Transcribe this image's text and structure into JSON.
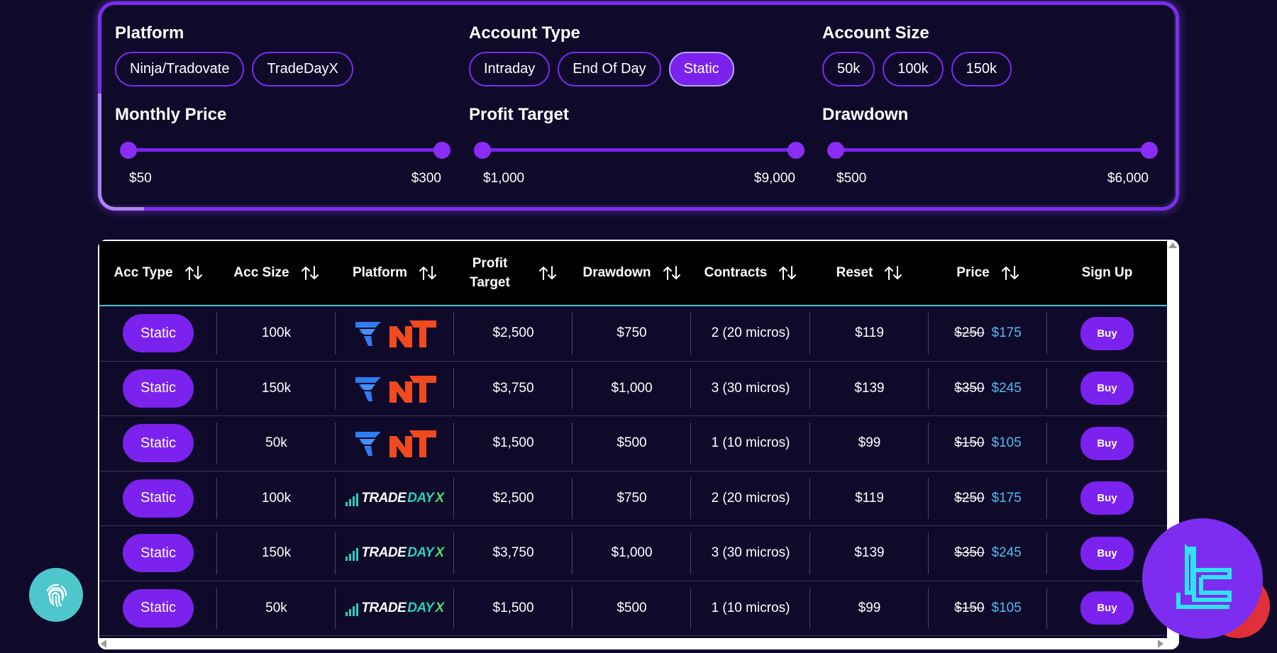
{
  "filters": {
    "platform": {
      "title": "Platform",
      "options": [
        "Ninja/Tradovate",
        "TradeDayX"
      ]
    },
    "account_type": {
      "title": "Account Type",
      "options": [
        "Intraday",
        "End Of Day",
        "Static"
      ],
      "selected": "Static"
    },
    "account_size": {
      "title": "Account Size",
      "options": [
        "50k",
        "100k",
        "150k"
      ]
    },
    "monthly_price": {
      "title": "Monthly Price",
      "min": "$50",
      "max": "$300"
    },
    "profit_target": {
      "title": "Profit Target",
      "min": "$1,000",
      "max": "$9,000"
    },
    "drawdown": {
      "title": "Drawdown",
      "min": "$500",
      "max": "$6,000"
    }
  },
  "table": {
    "headers": {
      "acc_type": "Acc Type",
      "acc_size": "Acc Size",
      "platform": "Platform",
      "profit_target_line1": "Profit",
      "profit_target_line2": "Target",
      "drawdown": "Drawdown",
      "contracts": "Contracts",
      "reset": "Reset",
      "price": "Price",
      "sign_up": "Sign Up"
    },
    "rows": [
      {
        "type": "Static",
        "size": "100k",
        "platform": "ninja-tradovate",
        "profit_target": "$2,500",
        "drawdown": "$750",
        "contracts": "2 (20 micros)",
        "reset": "$119",
        "price_old": "$250",
        "price_new": "$175",
        "buy": "Buy"
      },
      {
        "type": "Static",
        "size": "150k",
        "platform": "ninja-tradovate",
        "profit_target": "$3,750",
        "drawdown": "$1,000",
        "contracts": "3 (30 micros)",
        "reset": "$139",
        "price_old": "$350",
        "price_new": "$245",
        "buy": "Buy"
      },
      {
        "type": "Static",
        "size": "50k",
        "platform": "ninja-tradovate",
        "profit_target": "$1,500",
        "drawdown": "$500",
        "contracts": "1 (10 micros)",
        "reset": "$99",
        "price_old": "$150",
        "price_new": "$105",
        "buy": "Buy"
      },
      {
        "type": "Static",
        "size": "100k",
        "platform": "tradedayx",
        "profit_target": "$2,500",
        "drawdown": "$750",
        "contracts": "2 (20 micros)",
        "reset": "$119",
        "price_old": "$250",
        "price_new": "$175",
        "buy": "Buy"
      },
      {
        "type": "Static",
        "size": "150k",
        "platform": "tradedayx",
        "profit_target": "$3,750",
        "drawdown": "$1,000",
        "contracts": "3 (30 micros)",
        "reset": "$139",
        "price_old": "$350",
        "price_new": "$245",
        "buy": "Buy"
      },
      {
        "type": "Static",
        "size": "50k",
        "platform": "tradedayx",
        "profit_target": "$1,500",
        "drawdown": "$500",
        "contracts": "1 (10 micros)",
        "reset": "$99",
        "price_old": "$150",
        "price_new": "$105",
        "buy": "Buy"
      }
    ]
  },
  "logos": {
    "tradedayx": {
      "trade": "TRADE",
      "day": "DAY",
      "x": "X"
    }
  },
  "colors": {
    "background": "#0f0a2a",
    "accent_purple": "#7b22ee",
    "header_divider": "#2ec7d8",
    "new_price": "#55b8f0",
    "tradovate_blue": "#2f7df2",
    "ninjatrader_orange": "#f24a1f",
    "fingerprint_teal": "#4ec7cc"
  },
  "icons": {
    "sort": "sort-arrows-icon",
    "fingerprint": "fingerprint-icon",
    "brand": "brand-logo-icon"
  }
}
